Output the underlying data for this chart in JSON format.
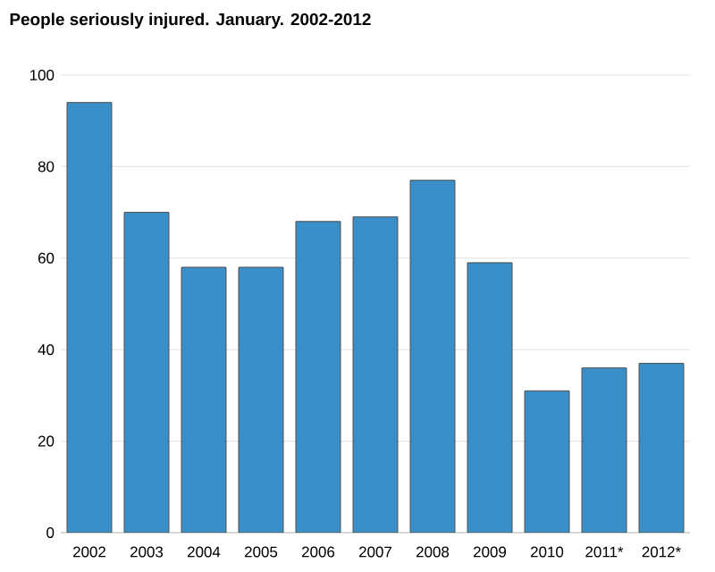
{
  "chart_data": {
    "type": "bar",
    "title": "People seriously injured. January. 2002-2012",
    "categories": [
      "2002",
      "2003",
      "2004",
      "2005",
      "2006",
      "2007",
      "2008",
      "2009",
      "2010",
      "2011*",
      "2012*"
    ],
    "values": [
      94,
      70,
      58,
      58,
      68,
      69,
      77,
      59,
      31,
      36,
      37
    ],
    "color": "#3a8fc9",
    "ylim": [
      0,
      100
    ],
    "yticks": [
      0,
      20,
      40,
      60,
      80,
      100
    ],
    "grid": "y"
  }
}
